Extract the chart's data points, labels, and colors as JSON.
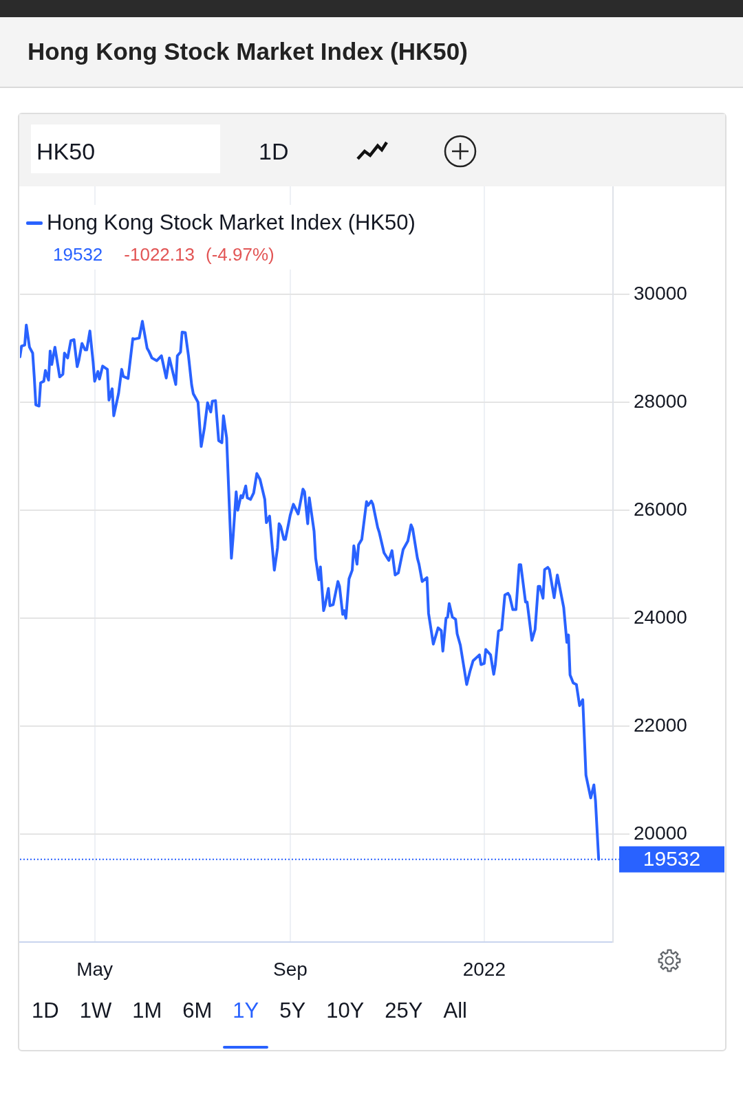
{
  "chart_data": {
    "type": "line",
    "title": "Hong Kong Stock Market Index (HK50)",
    "annotations": [
      "HK50",
      "1D",
      "19532",
      "-1022.13",
      "(-4.97%)",
      "1D",
      "1W",
      "1M",
      "6M",
      "1Y",
      "5Y",
      "10Y",
      "25Y",
      "All"
    ],
    "x": [
      "2021-03-15",
      "2021-03-16",
      "2021-03-18",
      "2021-03-19",
      "2021-03-21",
      "2021-03-23",
      "2021-03-24",
      "2021-03-25",
      "2021-03-27",
      "2021-03-28",
      "2021-03-30",
      "2021-03-31",
      "2021-04-02",
      "2021-04-03",
      "2021-04-04",
      "2021-04-06",
      "2021-04-09",
      "2021-04-11",
      "2021-04-12",
      "2021-04-14",
      "2021-04-16",
      "2021-04-18",
      "2021-04-20",
      "2021-04-21",
      "2021-04-23",
      "2021-04-25",
      "2021-04-26",
      "2021-04-28",
      "2021-04-30",
      "2021-05-01",
      "2021-05-03",
      "2021-05-04",
      "2021-05-06",
      "2021-05-08",
      "2021-05-09",
      "2021-05-10",
      "2021-05-12",
      "2021-05-13",
      "2021-05-16",
      "2021-05-18",
      "2021-05-19",
      "2021-05-22",
      "2021-05-25",
      "2021-05-26",
      "2021-05-29",
      "2021-05-31",
      "2021-06-03",
      "2021-06-04",
      "2021-06-06",
      "2021-06-09",
      "2021-06-12",
      "2021-06-15",
      "2021-06-17",
      "2021-06-21",
      "2021-06-22",
      "2021-06-24",
      "2021-06-25",
      "2021-06-27",
      "2021-06-29",
      "2021-07-01",
      "2021-07-02",
      "2021-07-05",
      "2021-07-07",
      "2021-07-09",
      "2021-07-11",
      "2021-07-13",
      "2021-07-14",
      "2021-07-16",
      "2021-07-18",
      "2021-07-20",
      "2021-07-21",
      "2021-07-23",
      "2021-07-26",
      "2021-07-27",
      "2021-07-29",
      "2021-07-30",
      "2021-08-01",
      "2021-08-02",
      "2021-08-04",
      "2021-08-05",
      "2021-08-07",
      "2021-08-09",
      "2021-08-11",
      "2021-08-13",
      "2021-08-16",
      "2021-08-17",
      "2021-08-19",
      "2021-08-22",
      "2021-08-24",
      "2021-08-25",
      "2021-08-26",
      "2021-08-28",
      "2021-08-29",
      "2021-09-01",
      "2021-09-03",
      "2021-09-06",
      "2021-09-09",
      "2021-09-10",
      "2021-09-12",
      "2021-09-13",
      "2021-09-16",
      "2021-09-17",
      "2021-09-19",
      "2021-09-20",
      "2021-09-22",
      "2021-09-23",
      "2021-09-25",
      "2021-09-26",
      "2021-09-28",
      "2021-10-01",
      "2021-10-02",
      "2021-10-04",
      "2021-10-05",
      "2021-10-06",
      "2021-10-08",
      "2021-10-10",
      "2021-10-11",
      "2021-10-13",
      "2021-10-14",
      "2021-10-16",
      "2021-10-19",
      "2021-10-20",
      "2021-10-22",
      "2021-10-23",
      "2021-10-26",
      "2021-10-27",
      "2021-10-30",
      "2021-11-02",
      "2021-11-04",
      "2021-11-06",
      "2021-11-08",
      "2021-11-11",
      "2021-11-14",
      "2021-11-16",
      "2021-11-17",
      "2021-11-20",
      "2021-11-21",
      "2021-11-23",
      "2021-11-26",
      "2021-11-27",
      "2021-11-30",
      "2021-12-03",
      "2021-12-05",
      "2021-12-06",
      "2021-12-08",
      "2021-12-09",
      "2021-12-10",
      "2021-12-12",
      "2021-12-14",
      "2021-12-15",
      "2021-12-17",
      "2021-12-21",
      "2021-12-23",
      "2021-12-25",
      "2021-12-29",
      "2021-12-30",
      "2022-01-01",
      "2022-01-02",
      "2022-01-05",
      "2022-01-07",
      "2022-01-08",
      "2022-01-10",
      "2022-01-12",
      "2022-01-14",
      "2022-01-16",
      "2022-01-17",
      "2022-01-19",
      "2022-01-21",
      "2022-01-23",
      "2022-01-24",
      "2022-01-27",
      "2022-01-28",
      "2022-01-31",
      "2022-02-02",
      "2022-02-04",
      "2022-02-05",
      "2022-02-07",
      "2022-02-08",
      "2022-02-10",
      "2022-02-11",
      "2022-02-14",
      "2022-02-16",
      "2022-02-20",
      "2022-02-22",
      "2022-02-23",
      "2022-02-24",
      "2022-02-26",
      "2022-02-28",
      "2022-03-02",
      "2022-03-04",
      "2022-03-06",
      "2022-03-09",
      "2022-03-11",
      "2022-03-12",
      "2022-03-14"
    ],
    "series": [
      {
        "name": "Hong Kong Stock Market Index (HK50)",
        "color": "#2962ff",
        "values": [
          28840,
          29040,
          29060,
          29430,
          29020,
          28910,
          28470,
          27950,
          27930,
          28360,
          28390,
          28590,
          28410,
          28950,
          28700,
          29020,
          28470,
          28520,
          28910,
          28820,
          29140,
          29160,
          28660,
          28770,
          29090,
          28970,
          28970,
          29320,
          28750,
          28390,
          28570,
          28430,
          28670,
          28630,
          28610,
          28040,
          28250,
          27750,
          28160,
          28610,
          28480,
          28440,
          29180,
          29170,
          29190,
          29500,
          29000,
          28950,
          28820,
          28770,
          28860,
          28450,
          28820,
          28330,
          28860,
          28930,
          29300,
          29290,
          28860,
          28320,
          28160,
          28000,
          27180,
          27520,
          27990,
          27820,
          28020,
          28030,
          27290,
          27250,
          27750,
          27340,
          25110,
          25480,
          26340,
          26000,
          26270,
          26230,
          26450,
          26230,
          26200,
          26320,
          26680,
          26570,
          26200,
          25770,
          25890,
          24890,
          25300,
          25750,
          25700,
          25460,
          25460,
          25910,
          26110,
          25930,
          26390,
          26340,
          25750,
          26230,
          25610,
          25110,
          24710,
          24950,
          24140,
          24250,
          24550,
          24230,
          24250,
          24680,
          24590,
          24070,
          24140,
          24000,
          24730,
          24890,
          25340,
          25000,
          25360,
          25460,
          26160,
          26090,
          26170,
          26110,
          25680,
          25590,
          25210,
          25070,
          25250,
          24800,
          24840,
          25270,
          25430,
          25730,
          25660,
          25110,
          25000,
          24680,
          24750,
          24090,
          23520,
          23820,
          23770,
          23390,
          24000,
          24020,
          24270,
          24020,
          23980,
          23710,
          23500,
          22770,
          23010,
          23210,
          23320,
          23140,
          23160,
          23420,
          23320,
          22960,
          23140,
          23760,
          23790,
          24430,
          24460,
          24410,
          24160,
          24160,
          24990,
          24990,
          24300,
          24300,
          23590,
          23790,
          24590,
          24590,
          24370,
          24900,
          24940,
          24900,
          24380,
          24800,
          24200,
          23550,
          23690,
          22950,
          22800,
          22770,
          22380,
          22490,
          21090,
          20670,
          20910,
          20620,
          19532
        ]
      }
    ],
    "xlim": [
      "2021-03-15",
      "2022-03-23"
    ],
    "xticks": [
      {
        "value": "2021-05-01",
        "label": "May"
      },
      {
        "value": "2021-09-01",
        "label": "Sep"
      },
      {
        "value": "2022-01-01",
        "label": "2022"
      }
    ],
    "ylim": [
      18000,
      32000
    ],
    "yticks": [
      20000,
      22000,
      24000,
      26000,
      28000,
      30000
    ],
    "ref_lines": [
      {
        "axis": "y",
        "value": 19532,
        "label": "19532",
        "color": "#2962ff",
        "line_style": "dotted"
      }
    ],
    "grid": true,
    "legend": "top left",
    "marker": "none"
  }
}
